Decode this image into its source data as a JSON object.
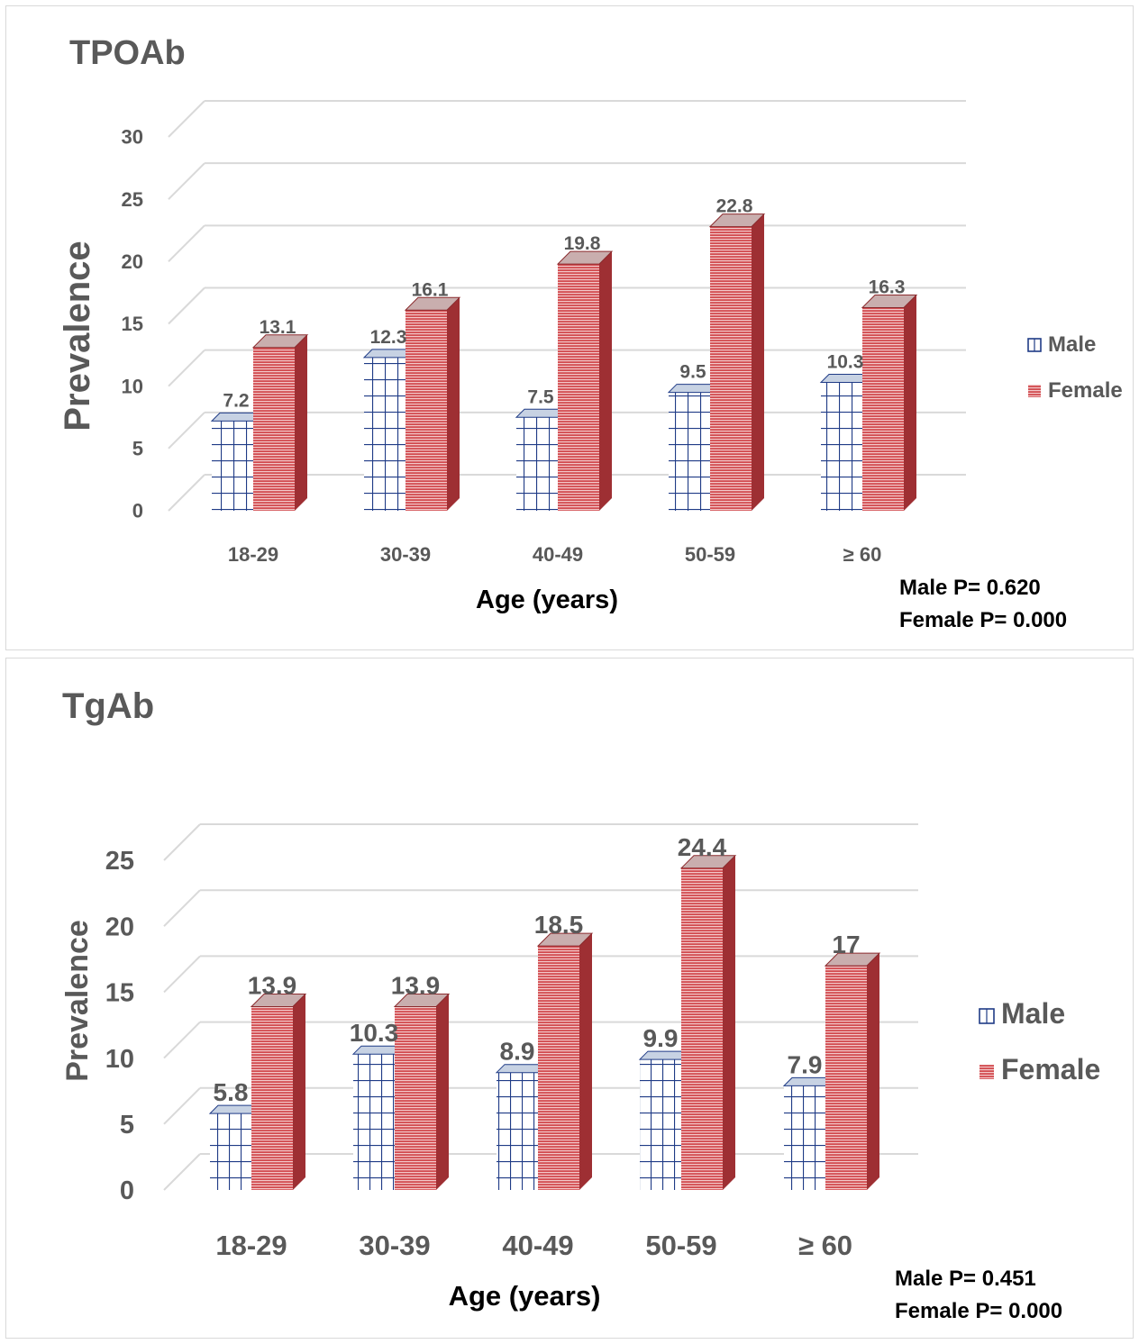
{
  "colors": {
    "male_line": "#1f3b86",
    "female_fill": "#d24b4f",
    "female_side": "#9e2f33",
    "text": "#595959",
    "dark_text": "#000000",
    "grid": "#d9d9d9"
  },
  "chart_data": [
    {
      "type": "bar",
      "title": "TPOAb",
      "categories": [
        "18-29",
        "30-39",
        "40-49",
        "50-59",
        "≥ 60"
      ],
      "series": [
        {
          "name": "Male",
          "values": [
            7.2,
            12.3,
            7.5,
            9.5,
            10.3
          ]
        },
        {
          "name": "Female",
          "values": [
            13.1,
            16.1,
            19.8,
            22.8,
            16.3
          ]
        }
      ],
      "value_labels": {
        "male": [
          "7.2",
          "12.3",
          "7.5",
          "9.5",
          "10.3"
        ],
        "female": [
          "13.1",
          "16.1",
          "19.8",
          "22.8",
          "16.3"
        ]
      },
      "ylabel": "Prevalence",
      "xlabel": "Age (years)",
      "ylim": [
        0,
        30
      ],
      "yticks": [
        0,
        5,
        10,
        15,
        20,
        25,
        30
      ],
      "ytick_labels": [
        "0",
        "5",
        "10",
        "15",
        "20",
        "25",
        "30"
      ],
      "legend": [
        "Male",
        "Female"
      ],
      "legend_position": "right",
      "grid": true,
      "notes": [
        "Male P= 0.620",
        "Female P= 0.000"
      ]
    },
    {
      "type": "bar",
      "title": "TgAb",
      "categories": [
        "18-29",
        "30-39",
        "40-49",
        "50-59",
        "≥ 60"
      ],
      "series": [
        {
          "name": "Male",
          "values": [
            5.8,
            10.3,
            8.9,
            9.9,
            7.9
          ]
        },
        {
          "name": "Female",
          "values": [
            13.9,
            13.9,
            18.5,
            24.4,
            17
          ]
        }
      ],
      "value_labels": {
        "male": [
          "5.8",
          "10.3",
          "8.9",
          "9.9",
          "7.9"
        ],
        "female": [
          "13.9",
          "13.9",
          "18.5",
          "24.4",
          "17"
        ]
      },
      "ylabel": "Prevalence",
      "xlabel": "Age (years)",
      "ylim": [
        0,
        25
      ],
      "yticks": [
        0,
        5,
        10,
        15,
        20,
        25
      ],
      "ytick_labels": [
        "0",
        "5",
        "10",
        "15",
        "20",
        "25"
      ],
      "legend": [
        "Male",
        "Female"
      ],
      "legend_position": "right",
      "grid": true,
      "notes": [
        "Male P= 0.451",
        "Female P= 0.000"
      ]
    }
  ]
}
